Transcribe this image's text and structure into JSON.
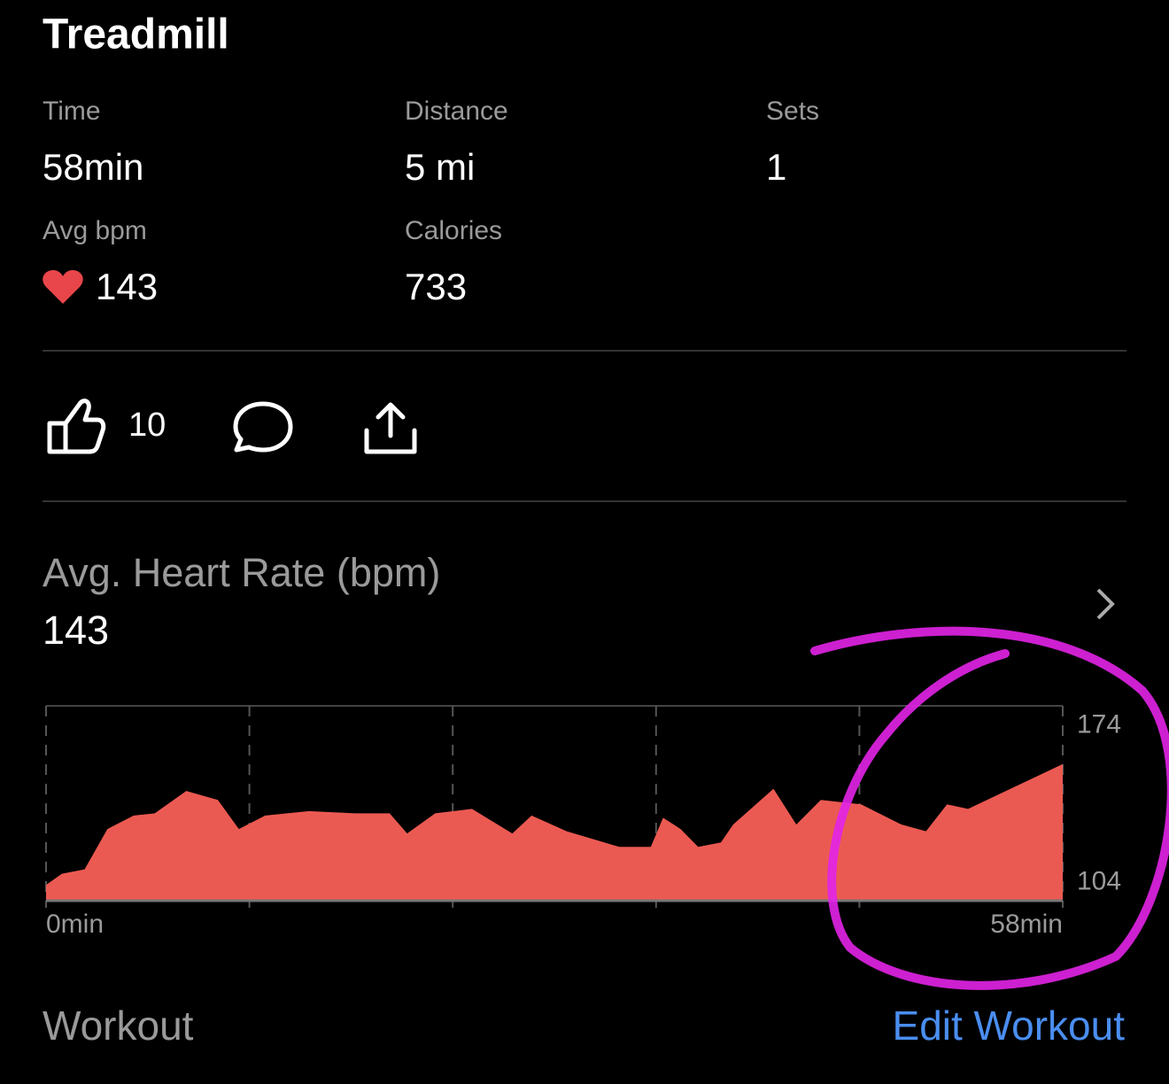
{
  "header": {
    "title": "Treadmill"
  },
  "stats": [
    {
      "label": "Time",
      "value": "58min"
    },
    {
      "label": "Distance",
      "value": "5 mi"
    },
    {
      "label": "Sets",
      "value": "1"
    },
    {
      "label": "Avg bpm",
      "value": "143"
    },
    {
      "label": "Calories",
      "value": "733"
    }
  ],
  "social": {
    "likes": 10
  },
  "heart_rate": {
    "title": "Avg. Heart Rate (bpm)",
    "value": 143
  },
  "chart_data": {
    "type": "area",
    "x": [
      0,
      0.9,
      2.2,
      3.5,
      5,
      6.2,
      8,
      9.8,
      11,
      12.5,
      15,
      17.6,
      19.6,
      20.6,
      22.2,
      24.3,
      26.6,
      27.7,
      29.7,
      32.7,
      34.5,
      35.2,
      36.2,
      37.2,
      38.5,
      39.2,
      41.5,
      42.8,
      44.2,
      46.5,
      48.8,
      50.2,
      51.4,
      52.6,
      58
    ],
    "values": [
      103,
      108,
      110,
      128,
      134,
      135,
      145,
      141,
      128,
      134,
      136,
      135,
      135,
      126,
      135,
      137,
      126,
      134,
      127,
      120,
      120,
      133,
      128,
      120,
      122,
      130,
      146,
      130,
      141,
      139,
      130,
      127,
      139,
      137,
      157
    ],
    "color": "#eb5a52",
    "xlim": [
      0,
      58
    ],
    "ylim": [
      96,
      183
    ],
    "yticks": [
      104,
      174
    ],
    "xticks": [
      {
        "value": 0,
        "label": "0min"
      },
      11.6,
      23.2,
      34.8,
      46.4,
      {
        "value": 58,
        "label": "58min"
      }
    ],
    "grid": true
  },
  "workout": {
    "title": "Workout",
    "action": "Edit Workout"
  }
}
